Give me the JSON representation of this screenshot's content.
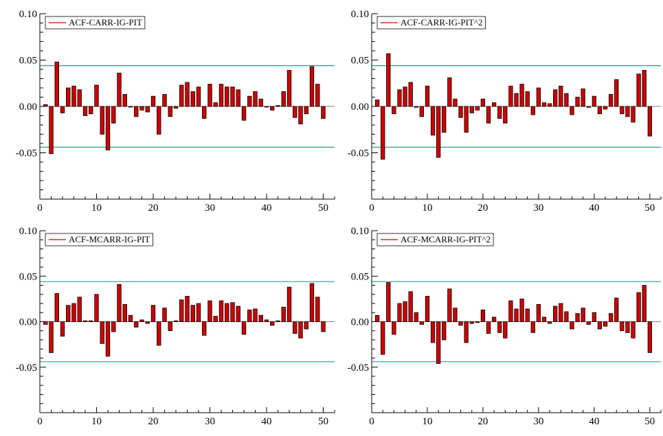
{
  "colors": {
    "bar_fill": "#cc0000",
    "bar_stroke": "#000000",
    "band_line": "#2a9d95",
    "legend_line": "#cc0000",
    "axis": "#000000"
  },
  "chart_data": [
    {
      "type": "bar",
      "legend": "ACF-CARR-IG-PIT",
      "legend_position": "top-left",
      "xlim": [
        0,
        52
      ],
      "ylim": [
        -0.1,
        0.1
      ],
      "x_ticks": [
        0,
        10,
        20,
        30,
        40,
        50
      ],
      "y_ticks": [
        0.1,
        0.05,
        0.0,
        -0.05
      ],
      "y_tick_labels": [
        "0.10",
        "0.05",
        "0.00",
        "-0.05"
      ],
      "confidence_band": 0.044,
      "lags": [
        1,
        2,
        3,
        4,
        5,
        6,
        7,
        8,
        9,
        10,
        11,
        12,
        13,
        14,
        15,
        16,
        17,
        18,
        19,
        20,
        21,
        22,
        23,
        24,
        25,
        26,
        27,
        28,
        29,
        30,
        31,
        32,
        33,
        34,
        35,
        36,
        37,
        38,
        39,
        40,
        41,
        42,
        43,
        44,
        45,
        46,
        47,
        48,
        49,
        50
      ],
      "values": [
        0.002,
        -0.051,
        0.048,
        -0.007,
        0.02,
        0.022,
        0.018,
        -0.01,
        -0.008,
        0.023,
        -0.03,
        -0.047,
        -0.018,
        0.036,
        0.013,
        0.0,
        -0.011,
        -0.004,
        -0.006,
        0.011,
        -0.03,
        0.013,
        -0.011,
        -0.002,
        0.023,
        0.026,
        0.016,
        0.021,
        -0.013,
        0.024,
        0.004,
        0.024,
        0.021,
        0.021,
        0.018,
        -0.015,
        0.011,
        0.016,
        0.008,
        0.0,
        -0.004,
        0.001,
        0.016,
        0.039,
        -0.012,
        -0.019,
        -0.008,
        0.043,
        0.024,
        -0.013
      ]
    },
    {
      "type": "bar",
      "legend": "ACF-CARR-IG-PIT^2",
      "legend_position": "top-left",
      "xlim": [
        0,
        52
      ],
      "ylim": [
        -0.1,
        0.1
      ],
      "x_ticks": [
        0,
        10,
        20,
        30,
        40,
        50
      ],
      "y_ticks": [
        0.1,
        0.05,
        0.0,
        -0.05
      ],
      "y_tick_labels": [
        "0.10",
        "0.05",
        "0.00",
        "-0.05"
      ],
      "confidence_band": 0.044,
      "lags": [
        1,
        2,
        3,
        4,
        5,
        6,
        7,
        8,
        9,
        10,
        11,
        12,
        13,
        14,
        15,
        16,
        17,
        18,
        19,
        20,
        21,
        22,
        23,
        24,
        25,
        26,
        27,
        28,
        29,
        30,
        31,
        32,
        33,
        34,
        35,
        36,
        37,
        38,
        39,
        40,
        41,
        42,
        43,
        44,
        45,
        46,
        47,
        48,
        49,
        50
      ],
      "values": [
        0.007,
        -0.057,
        0.057,
        -0.008,
        0.018,
        0.021,
        0.026,
        -0.001,
        -0.011,
        0.022,
        -0.031,
        -0.055,
        -0.028,
        0.031,
        0.008,
        -0.012,
        -0.028,
        -0.007,
        -0.004,
        0.008,
        -0.018,
        0.004,
        -0.013,
        -0.018,
        0.022,
        0.014,
        0.024,
        0.016,
        -0.009,
        0.02,
        0.004,
        0.003,
        0.018,
        0.022,
        0.014,
        -0.009,
        0.01,
        0.019,
        -0.001,
        0.011,
        -0.008,
        -0.003,
        0.013,
        0.029,
        -0.008,
        -0.011,
        -0.017,
        0.035,
        0.039,
        -0.032
      ]
    },
    {
      "type": "bar",
      "legend": "ACF-MCARR-IG-PIT",
      "legend_position": "top-left",
      "xlim": [
        0,
        52
      ],
      "ylim": [
        -0.1,
        0.1
      ],
      "x_ticks": [
        0,
        10,
        20,
        30,
        40,
        50
      ],
      "y_ticks": [
        0.1,
        0.05,
        0.0,
        -0.05
      ],
      "y_tick_labels": [
        "0.10",
        "0.05",
        "0.00",
        "-0.05"
      ],
      "confidence_band": 0.044,
      "lags": [
        1,
        2,
        3,
        4,
        5,
        6,
        7,
        8,
        9,
        10,
        11,
        12,
        13,
        14,
        15,
        16,
        17,
        18,
        19,
        20,
        21,
        22,
        23,
        24,
        25,
        26,
        27,
        28,
        29,
        30,
        31,
        32,
        33,
        34,
        35,
        36,
        37,
        38,
        39,
        40,
        41,
        42,
        43,
        44,
        45,
        46,
        47,
        48,
        49,
        50
      ],
      "values": [
        -0.003,
        -0.034,
        0.031,
        -0.016,
        0.018,
        0.02,
        0.027,
        0.001,
        0.001,
        0.03,
        -0.024,
        -0.038,
        -0.011,
        0.041,
        0.019,
        0.007,
        -0.006,
        0.002,
        -0.002,
        0.018,
        -0.026,
        0.015,
        -0.01,
        0.001,
        0.024,
        0.028,
        0.018,
        0.02,
        -0.015,
        0.023,
        0.006,
        0.023,
        0.02,
        0.021,
        0.017,
        -0.014,
        0.013,
        0.014,
        0.007,
        0.002,
        -0.004,
        0.001,
        0.016,
        0.038,
        -0.013,
        -0.018,
        -0.008,
        0.042,
        0.027,
        -0.011
      ]
    },
    {
      "type": "bar",
      "legend": "ACF-MCARR-IG-PIT^2",
      "legend_position": "top-left",
      "xlim": [
        0,
        52
      ],
      "ylim": [
        -0.1,
        0.1
      ],
      "x_ticks": [
        0,
        10,
        20,
        30,
        40,
        50
      ],
      "y_ticks": [
        0.1,
        0.05,
        0.0,
        -0.05
      ],
      "y_tick_labels": [
        "0.10",
        "0.05",
        "0.00",
        "-0.05"
      ],
      "confidence_band": 0.044,
      "lags": [
        1,
        2,
        3,
        4,
        5,
        6,
        7,
        8,
        9,
        10,
        11,
        12,
        13,
        14,
        15,
        16,
        17,
        18,
        19,
        20,
        21,
        22,
        23,
        24,
        25,
        26,
        27,
        28,
        29,
        30,
        31,
        32,
        33,
        34,
        35,
        36,
        37,
        38,
        39,
        40,
        41,
        42,
        43,
        44,
        45,
        46,
        47,
        48,
        49,
        50
      ],
      "values": [
        0.007,
        -0.036,
        0.043,
        -0.014,
        0.02,
        0.022,
        0.033,
        0.01,
        -0.003,
        0.028,
        -0.023,
        -0.046,
        -0.02,
        0.036,
        0.015,
        -0.004,
        -0.023,
        -0.002,
        -0.001,
        0.013,
        -0.013,
        0.005,
        -0.012,
        -0.018,
        0.023,
        0.014,
        0.025,
        0.014,
        -0.012,
        0.019,
        0.005,
        -0.002,
        0.017,
        0.02,
        0.011,
        -0.008,
        0.009,
        0.015,
        -0.003,
        0.01,
        -0.008,
        -0.005,
        0.009,
        0.026,
        -0.01,
        -0.012,
        -0.018,
        0.032,
        0.04,
        -0.034
      ]
    }
  ]
}
